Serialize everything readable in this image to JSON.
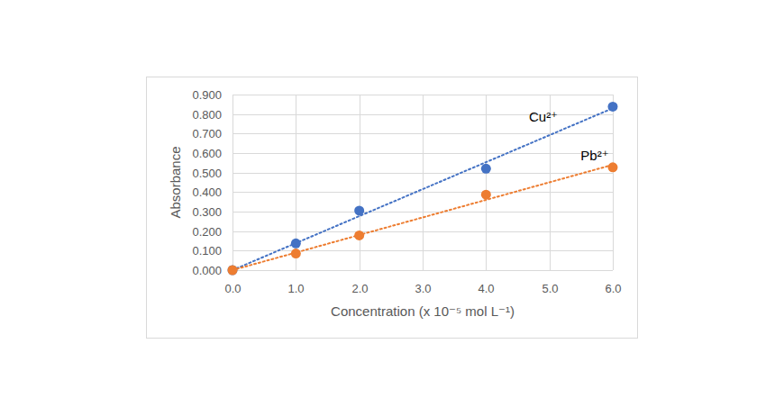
{
  "chart_data": {
    "type": "scatter",
    "x_label": "Concentration (x 10⁻⁵ mol L⁻¹)",
    "y_label": "Absorbance",
    "x": [
      0,
      1,
      2,
      4,
      6
    ],
    "series": [
      {
        "name": "Cu²⁺",
        "color": "#4472c4",
        "marker": "circle",
        "line_style": "dotted",
        "values": [
          0,
          0.137,
          0.305,
          0.52,
          0.838
        ],
        "trend_x": [
          0,
          6
        ],
        "trend_values": [
          0,
          0.83
        ]
      },
      {
        "name": "Pb²⁺",
        "color": "#ed7d31",
        "marker": "circle",
        "line_style": "dotted",
        "values": [
          0,
          0.085,
          0.178,
          0.387,
          0.527
        ],
        "trend_x": [
          0,
          6
        ],
        "trend_values": [
          0,
          0.54
        ]
      }
    ],
    "xlim": [
      0,
      6
    ],
    "ylim": [
      0,
      0.9
    ],
    "xticks": [
      {
        "value": 0,
        "label": "0.0"
      },
      {
        "value": 1,
        "label": "1.0"
      },
      {
        "value": 2,
        "label": "2.0"
      },
      {
        "value": 3,
        "label": "3.0"
      },
      {
        "value": 4,
        "label": "4.0"
      },
      {
        "value": 5,
        "label": "5.0"
      },
      {
        "value": 6,
        "label": "6.0"
      }
    ],
    "yticks": [
      {
        "value": 0,
        "label": "0.000"
      },
      {
        "value": 0.1,
        "label": "0.100"
      },
      {
        "value": 0.2,
        "label": "0.200"
      },
      {
        "value": 0.3,
        "label": "0.300"
      },
      {
        "value": 0.4,
        "label": "0.400"
      },
      {
        "value": 0.5,
        "label": "0.500"
      },
      {
        "value": 0.6,
        "label": "0.600"
      },
      {
        "value": 0.7,
        "label": "0.700"
      },
      {
        "value": 0.8,
        "label": "0.800"
      },
      {
        "value": 0.9,
        "label": "0.900"
      }
    ],
    "grid": true
  }
}
